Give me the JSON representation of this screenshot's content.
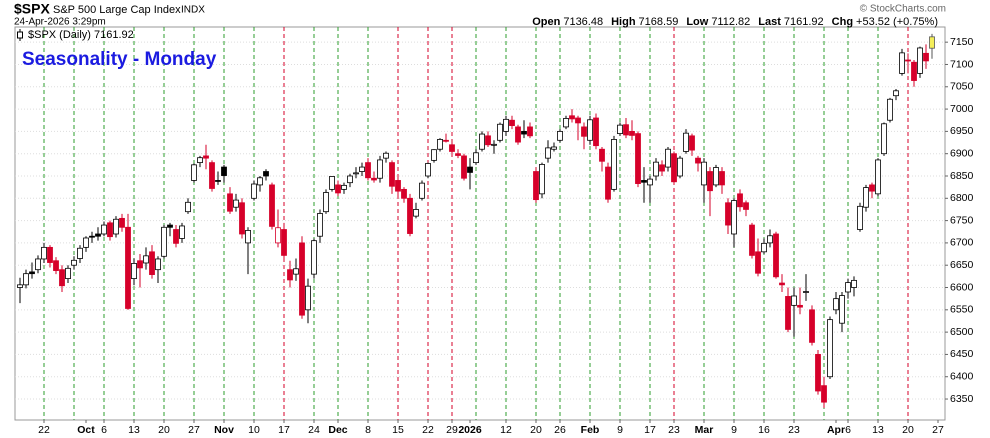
{
  "chart_data": {
    "type": "candlestick",
    "symbol": "$SPX",
    "name": "S&P 500 Large Cap Index",
    "exchange": "INDX",
    "timestamp": "24-Apr-2026 3:29pm",
    "quote": [
      [
        "Open",
        "7136.48"
      ],
      [
        "High",
        "7168.59"
      ],
      [
        "Low",
        "7112.82"
      ],
      [
        "Last",
        "7161.92"
      ],
      [
        "Chg",
        "+53.52 (+0.75%)"
      ]
    ],
    "copyright": "© StockCharts.com",
    "legend_label": "$SPX (Daily) 7161.92",
    "title": "Seasonality - Monday",
    "ylim": [
      6303,
      7184
    ],
    "yticks": [
      6350,
      6400,
      6450,
      6500,
      6550,
      6600,
      6650,
      6700,
      6750,
      6800,
      6850,
      6900,
      6950,
      7000,
      7050,
      7100,
      7150
    ],
    "grid": true,
    "up_color": "#000000",
    "down_color": "#d6002a",
    "last_color": "#f4ee5a",
    "categories": [
      null,
      null,
      null,
      null,
      "22",
      null,
      null,
      null,
      null,
      null,
      null,
      "Oct",
      null,
      null,
      "6",
      null,
      null,
      null,
      null,
      "13",
      null,
      null,
      null,
      null,
      "20",
      null,
      null,
      null,
      null,
      "27",
      null,
      null,
      null,
      null,
      "Nov",
      null,
      null,
      null,
      null,
      "10",
      null,
      null,
      null,
      null,
      "17",
      null,
      null,
      null,
      null,
      "24",
      null,
      null,
      null,
      "Dec",
      null,
      null,
      null,
      null,
      "8",
      null,
      null,
      null,
      null,
      "15",
      null,
      null,
      null,
      null,
      "22",
      null,
      null,
      null,
      "29",
      null,
      null,
      "2026",
      null,
      null,
      null,
      null,
      null,
      "12",
      null,
      null,
      null,
      null,
      "20",
      null,
      null,
      null,
      "26",
      null,
      null,
      null,
      null,
      "Feb",
      null,
      null,
      null,
      null,
      "9",
      null,
      null,
      null,
      null,
      "17",
      null,
      null,
      null,
      "23",
      null,
      null,
      null,
      null,
      "Mar",
      null,
      null,
      null,
      null,
      "9",
      null,
      null,
      null,
      null,
      "16",
      null,
      null,
      null,
      null,
      "23",
      null,
      null,
      null,
      null,
      null,
      null,
      "Apr",
      null,
      "6",
      null,
      null,
      null,
      null,
      "13",
      null,
      null,
      null,
      null,
      "20",
      null,
      null,
      null,
      null,
      "27"
    ],
    "open": [
      6600,
      6606,
      6635,
      6640,
      6664,
      6690,
      6660,
      6640,
      6620,
      6650,
      6665,
      6690,
      6715,
      6720,
      6720,
      6745,
      6720,
      6755,
      6735,
      6620,
      6660,
      6655,
      6680,
      6640,
      6670,
      6740,
      6730,
      6710,
      6770,
      6840,
      6880,
      6895,
      6880,
      6840,
      6870,
      6810,
      6780,
      6790,
      6700,
      6800,
      6830,
      6860,
      6830,
      6700,
      6730,
      6640,
      6630,
      6700,
      6550,
      6630,
      6715,
      6770,
      6820,
      6830,
      6820,
      6835,
      6855,
      6860,
      6880,
      6845,
      6845,
      6890,
      6880,
      6840,
      6820,
      6800,
      6760,
      6800,
      6850,
      6885,
      6910,
      6930,
      6920,
      6900,
      6895,
      6870,
      6880,
      6910,
      6940,
      6920,
      6930,
      6950,
      6975,
      6960,
      6950,
      6960,
      6860,
      6810,
      6890,
      6910,
      6930,
      6960,
      6985,
      6980,
      6960,
      6930,
      6980,
      6910,
      6870,
      6820,
      6945,
      6965,
      6950,
      6945,
      6840,
      6830,
      6850,
      6875,
      6870,
      6900,
      6850,
      6905,
      6940,
      6890,
      6830,
      6860,
      6830,
      6860,
      6790,
      6720,
      6810,
      6790,
      6740,
      6680,
      6680,
      6700,
      6720,
      6610,
      6580,
      6560,
      6560,
      6590,
      6550,
      6450,
      6380,
      6400,
      6550,
      6520,
      6590,
      6600,
      6730,
      6780,
      6830,
      6810,
      6900,
      6975,
      7030,
      7080,
      7110,
      7105,
      7080,
      7125,
      7136.48,
      null
    ],
    "high": [
      6622,
      6640,
      6656,
      6672,
      6700,
      6695,
      6668,
      6650,
      6650,
      6670,
      6695,
      6715,
      6725,
      6735,
      6748,
      6750,
      6760,
      6765,
      6765,
      6665,
      6675,
      6690,
      6695,
      6670,
      6740,
      6745,
      6740,
      6745,
      6800,
      6878,
      6895,
      6920,
      6885,
      6860,
      6875,
      6825,
      6810,
      6800,
      6735,
      6840,
      6850,
      6865,
      6835,
      6775,
      6745,
      6660,
      6665,
      6715,
      6620,
      6710,
      6775,
      6820,
      6850,
      6840,
      6835,
      6855,
      6870,
      6880,
      6890,
      6860,
      6895,
      6905,
      6885,
      6850,
      6825,
      6810,
      6790,
      6840,
      6880,
      6910,
      6935,
      6945,
      6925,
      6910,
      6900,
      6890,
      6910,
      6950,
      6950,
      6930,
      6970,
      6985,
      6985,
      6965,
      6975,
      6970,
      6870,
      6880,
      6930,
      6925,
      6955,
      6985,
      7000,
      6985,
      6970,
      6985,
      6990,
      6915,
      6880,
      6940,
      6970,
      6980,
      6975,
      6950,
      6870,
      6850,
      6890,
      6885,
      6915,
      6905,
      6895,
      6955,
      6945,
      6895,
      6890,
      6870,
      6875,
      6870,
      6800,
      6800,
      6820,
      6795,
      6745,
      6710,
      6710,
      6730,
      6725,
      6630,
      6600,
      6600,
      6600,
      6630,
      6560,
      6460,
      6400,
      6535,
      6590,
      6590,
      6620,
      6625,
      6790,
      6830,
      6835,
      6890,
      6970,
      7025,
      7045,
      7135,
      7125,
      7110,
      7140,
      7145,
      7168.59,
      null
    ],
    "low": [
      6565,
      6598,
      6620,
      6632,
      6655,
      6645,
      6630,
      6590,
      6610,
      6640,
      6655,
      6680,
      6700,
      6705,
      6715,
      6705,
      6712,
      6725,
      6550,
      6605,
      6600,
      6640,
      6620,
      6610,
      6665,
      6715,
      6690,
      6700,
      6765,
      6835,
      6870,
      6865,
      6815,
      6830,
      6835,
      6765,
      6770,
      6710,
      6630,
      6795,
      6815,
      6840,
      6730,
      6690,
      6660,
      6600,
      6615,
      6530,
      6520,
      6620,
      6700,
      6765,
      6815,
      6805,
      6810,
      6825,
      6845,
      6850,
      6840,
      6835,
      6835,
      6880,
      6810,
      6805,
      6790,
      6715,
      6755,
      6795,
      6845,
      6880,
      6905,
      6925,
      6895,
      6890,
      6840,
      6820,
      6875,
      6905,
      6915,
      6900,
      6925,
      6940,
      6955,
      6920,
      6935,
      6935,
      6790,
      6800,
      6880,
      6905,
      6925,
      6955,
      6970,
      6930,
      6910,
      6920,
      6910,
      6860,
      6790,
      6815,
      6940,
      6935,
      6930,
      6825,
      6790,
      6790,
      6840,
      6850,
      6860,
      6830,
      6845,
      6900,
      6895,
      6860,
      6790,
      6760,
      6825,
      6810,
      6720,
      6690,
      6770,
      6760,
      6665,
      6625,
      6675,
      6690,
      6620,
      6590,
      6500,
      6490,
      6540,
      6570,
      6470,
      6360,
      6330,
      6395,
      6540,
      6500,
      6575,
      6580,
      6725,
      6770,
      6800,
      6805,
      6895,
      6970,
      7020,
      7075,
      7080,
      7050,
      7070,
      7090,
      7112.82,
      null
    ],
    "close": [
      6606,
      6631,
      6631,
      6664,
      6690,
      6656,
      6638,
      6604,
      6643,
      6661,
      6688,
      6711,
      6715,
      6715,
      6740,
      6714,
      6753,
      6735,
      6553,
      6654,
      6644,
      6671,
      6629,
      6664,
      6735,
      6735,
      6699,
      6738,
      6791,
      6875,
      6891,
      6890,
      6822,
      6840,
      6851,
      6771,
      6796,
      6720,
      6728,
      6832,
      6846,
      6850,
      6737,
      6734,
      6672,
      6617,
      6642,
      6538,
      6603,
      6705,
      6766,
      6813,
      6849,
      6812,
      6829,
      6850,
      6857,
      6870,
      6846,
      6841,
      6886,
      6901,
      6827,
      6816,
      6800,
      6721,
      6775,
      6834,
      6878,
      6909,
      6932,
      6930,
      6905,
      6896,
      6845,
      6858,
      6902,
      6944,
      6920,
      6921,
      6966,
      6977,
      6963,
      6926,
      6944,
      6940,
      6797,
      6876,
      6913,
      6915,
      6950,
      6979,
      6978,
      6969,
      6939,
      6976,
      6918,
      6883,
      6798,
      6932,
      6964,
      6942,
      6941,
      6833,
      6836,
      6843,
      6881,
      6861,
      6910,
      6837,
      6890,
      6946,
      6908,
      6879,
      6881,
      6817,
      6869,
      6830,
      6740,
      6795,
      6781,
      6775,
      6672,
      6632,
      6699,
      6716,
      6624,
      6606,
      6506,
      6581,
      6556,
      6591,
      6477,
      6368,
      6343,
      6528,
      6575,
      6582,
      6611,
      6616,
      6782,
      6824,
      6816,
      6886,
      6967,
      7022,
      7041,
      7126,
      7109,
      7064,
      7137,
      7108,
      7161.92,
      null
    ],
    "monday_lines": [
      {
        "index": 4,
        "color": "#2e9e2e"
      },
      {
        "index": 9,
        "color": "#2e9e2e"
      },
      {
        "index": 14,
        "color": "#2e9e2e"
      },
      {
        "index": 19,
        "color": "#2e9e2e"
      },
      {
        "index": 24,
        "color": "#2e9e2e"
      },
      {
        "index": 29,
        "color": "#2e9e2e"
      },
      {
        "index": 34,
        "color": "#2e9e2e"
      },
      {
        "index": 39,
        "color": "#2e9e2e"
      },
      {
        "index": 44,
        "color": "#d6002a"
      },
      {
        "index": 49,
        "color": "#2e9e2e"
      },
      {
        "index": 53,
        "color": "#2e9e2e"
      },
      {
        "index": 58,
        "color": "#2e9e2e"
      },
      {
        "index": 63,
        "color": "#d6002a"
      },
      {
        "index": 68,
        "color": "#d6002a"
      },
      {
        "index": 72,
        "color": "#d6002a"
      },
      {
        "index": 76,
        "color": "#2e9e2e"
      },
      {
        "index": 81,
        "color": "#2e9e2e"
      },
      {
        "index": 86,
        "color": "#2e9e2e"
      },
      {
        "index": 90,
        "color": "#2e9e2e"
      },
      {
        "index": 95,
        "color": "#2e9e2e"
      },
      {
        "index": 100,
        "color": "#2e9e2e"
      },
      {
        "index": 105,
        "color": "#2e9e2e"
      },
      {
        "index": 109,
        "color": "#d6002a"
      },
      {
        "index": 114,
        "color": "#2e9e2e"
      },
      {
        "index": 119,
        "color": "#2e9e2e"
      },
      {
        "index": 124,
        "color": "#2e9e2e"
      },
      {
        "index": 129,
        "color": "#2e9e2e"
      },
      {
        "index": 134,
        "color": "#2e9e2e"
      },
      {
        "index": 138,
        "color": "#2e9e2e"
      },
      {
        "index": 143,
        "color": "#2e9e2e"
      },
      {
        "index": 148,
        "color": "#d6002a"
      }
    ]
  }
}
